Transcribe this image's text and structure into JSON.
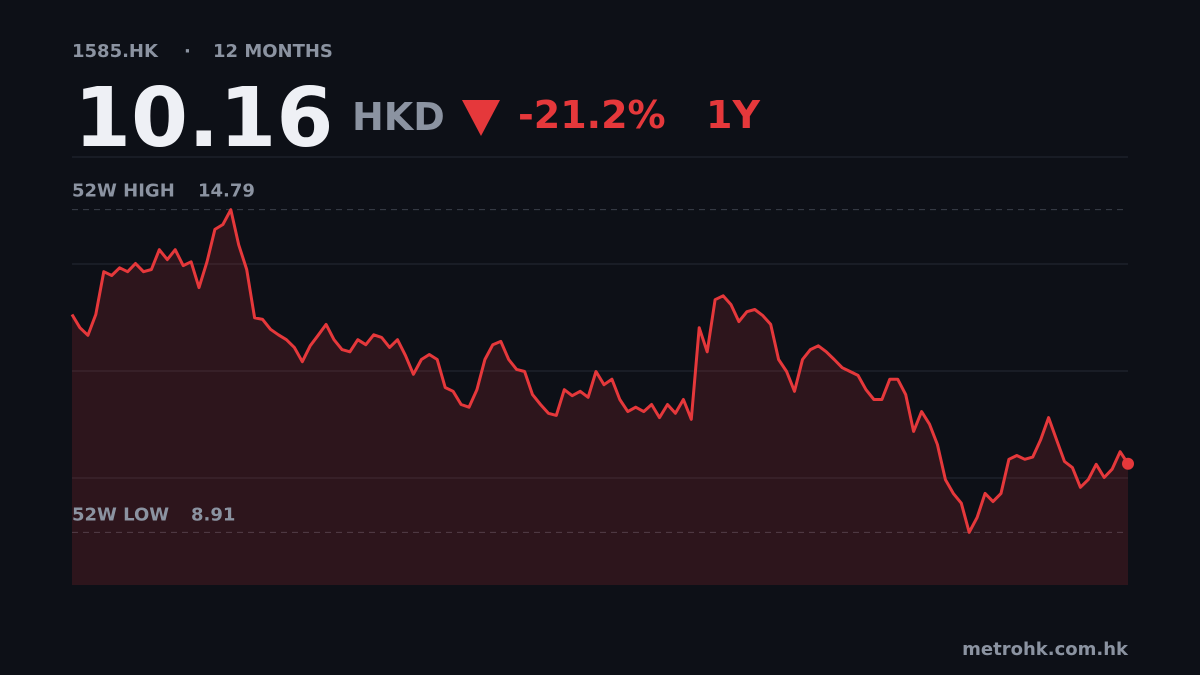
{
  "ticker": "1585.HK",
  "separator": "·",
  "period": "12 MONTHS",
  "price": 10.16,
  "currency": "HKD",
  "change": "-21.2%",
  "range": "1Y",
  "source": "metrohk.com.hk",
  "chart_data": {
    "type": "line",
    "color": "#e5383b",
    "area": true,
    "values": [
      12.88,
      12.64,
      12.5,
      12.88,
      13.66,
      13.59,
      13.73,
      13.66,
      13.81,
      13.66,
      13.7,
      14.06,
      13.88,
      14.06,
      13.77,
      13.84,
      13.37,
      13.84,
      14.43,
      14.52,
      14.79,
      14.15,
      13.7,
      12.82,
      12.79,
      12.61,
      12.51,
      12.42,
      12.28,
      12.02,
      12.31,
      12.5,
      12.7,
      12.42,
      12.24,
      12.2,
      12.42,
      12.33,
      12.51,
      12.46,
      12.28,
      12.42,
      12.13,
      11.79,
      12.06,
      12.15,
      12.06,
      11.55,
      11.48,
      11.24,
      11.19,
      11.51,
      12.06,
      12.33,
      12.39,
      12.06,
      11.88,
      11.84,
      11.42,
      11.24,
      11.08,
      11.04,
      11.51,
      11.4,
      11.48,
      11.37,
      11.84,
      11.6,
      11.7,
      11.33,
      11.11,
      11.19,
      11.11,
      11.24,
      11.0,
      11.24,
      11.08,
      11.33,
      10.97,
      12.64,
      12.2,
      13.15,
      13.22,
      13.06,
      12.75,
      12.93,
      12.97,
      12.86,
      12.7,
      12.06,
      11.84,
      11.48,
      12.06,
      12.24,
      12.31,
      12.2,
      12.06,
      11.91,
      11.84,
      11.77,
      11.51,
      11.33,
      11.33,
      11.7,
      11.7,
      11.42,
      10.75,
      11.11,
      10.88,
      10.51,
      9.87,
      9.62,
      9.44,
      8.91,
      9.18,
      9.62,
      9.47,
      9.62,
      10.24,
      10.31,
      10.24,
      10.28,
      10.6,
      11.0,
      10.6,
      10.2,
      10.09,
      9.73,
      9.87,
      10.15,
      9.91,
      10.06,
      10.38,
      10.16
    ],
    "ylim": [
      7.95,
      15.75
    ],
    "yticks": [
      9.9,
      11.85,
      13.8
    ],
    "grid": true,
    "high": {
      "label": "52W HIGH",
      "value": 14.79
    },
    "low": {
      "label": "52W LOW",
      "value": 8.91
    }
  }
}
